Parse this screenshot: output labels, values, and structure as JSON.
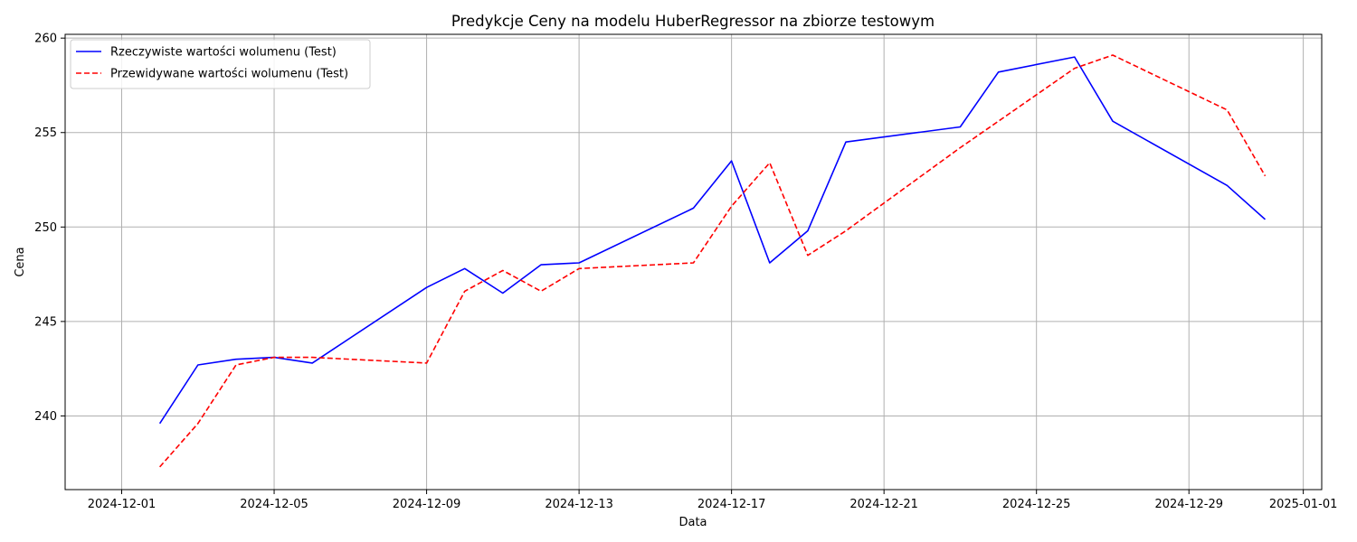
{
  "chart_data": {
    "type": "line",
    "title": "Predykcje Ceny na modelu HuberRegressor na zbiorze testowym",
    "xlabel": "Data",
    "ylabel": "Cena",
    "x_type": "date",
    "xlim": [
      "2024-12-01",
      "2024-12-31"
    ],
    "ylim": [
      236.1,
      260.2
    ],
    "x_ticks": [
      "2024-12-01",
      "2024-12-05",
      "2024-12-09",
      "2024-12-13",
      "2024-12-17",
      "2024-12-21",
      "2024-12-25",
      "2024-12-29",
      "2025-01-01"
    ],
    "y_ticks": [
      240,
      245,
      250,
      255,
      260
    ],
    "grid": true,
    "legend_position": "top-left",
    "series": [
      {
        "name": "Rzeczywiste wartości wolumenu (Test)",
        "color": "#0000ff",
        "style": "solid",
        "points": [
          [
            "2024-12-02",
            239.6
          ],
          [
            "2024-12-03",
            242.7
          ],
          [
            "2024-12-04",
            243.0
          ],
          [
            "2024-12-05",
            243.1
          ],
          [
            "2024-12-06",
            242.8
          ],
          [
            "2024-12-09",
            246.8
          ],
          [
            "2024-12-10",
            247.8
          ],
          [
            "2024-12-11",
            246.5
          ],
          [
            "2024-12-12",
            248.0
          ],
          [
            "2024-12-13",
            248.1
          ],
          [
            "2024-12-16",
            251.0
          ],
          [
            "2024-12-17",
            253.5
          ],
          [
            "2024-12-18",
            248.1
          ],
          [
            "2024-12-19",
            249.8
          ],
          [
            "2024-12-20",
            254.5
          ],
          [
            "2024-12-23",
            255.3
          ],
          [
            "2024-12-24",
            258.2
          ],
          [
            "2024-12-26",
            259.0
          ],
          [
            "2024-12-27",
            255.6
          ],
          [
            "2024-12-30",
            252.2
          ],
          [
            "2024-12-31",
            250.4
          ]
        ]
      },
      {
        "name": "Przewidywane wartości wolumenu (Test)",
        "color": "#ff0000",
        "style": "dashed",
        "points": [
          [
            "2024-12-02",
            237.3
          ],
          [
            "2024-12-03",
            239.6
          ],
          [
            "2024-12-04",
            242.7
          ],
          [
            "2024-12-05",
            243.1
          ],
          [
            "2024-12-06",
            243.1
          ],
          [
            "2024-12-09",
            242.8
          ],
          [
            "2024-12-10",
            246.6
          ],
          [
            "2024-12-11",
            247.7
          ],
          [
            "2024-12-12",
            246.6
          ],
          [
            "2024-12-13",
            247.8
          ],
          [
            "2024-12-16",
            248.1
          ],
          [
            "2024-12-17",
            251.1
          ],
          [
            "2024-12-18",
            253.4
          ],
          [
            "2024-12-19",
            248.5
          ],
          [
            "2024-12-20",
            249.8
          ],
          [
            "2024-12-23",
            254.2
          ],
          [
            "2024-12-24",
            255.6
          ],
          [
            "2024-12-26",
            258.4
          ],
          [
            "2024-12-27",
            259.1
          ],
          [
            "2024-12-30",
            256.2
          ],
          [
            "2024-12-31",
            252.7
          ]
        ]
      }
    ]
  }
}
